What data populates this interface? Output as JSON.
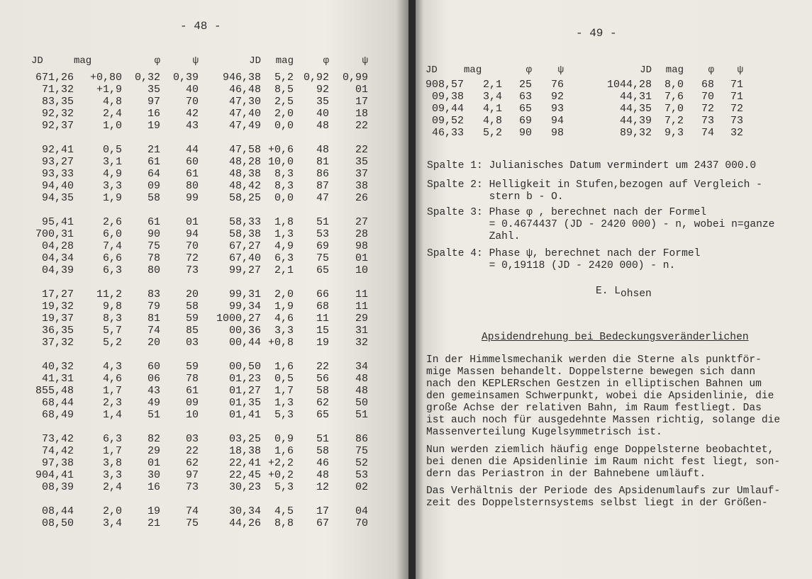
{
  "left_page": {
    "page_number": "- 48 -",
    "headers": [
      "JD",
      "mag",
      "φ",
      "ψ",
      "JD",
      "mag",
      "φ",
      "ψ"
    ],
    "rows": [
      [
        "671,26",
        "+0,80",
        "0,32",
        "0,39",
        "946,38",
        "5,2",
        "0,92",
        "0,99"
      ],
      [
        "71,32",
        "+1,9",
        "35",
        "40",
        "46,48",
        "8,5",
        "92",
        "01"
      ],
      [
        "83,35",
        "4,8",
        "97",
        "70",
        "47,30",
        "2,5",
        "35",
        "17"
      ],
      [
        "92,32",
        "2,4",
        "16",
        "42",
        "47,40",
        "2,0",
        "40",
        "18"
      ],
      [
        "92,37",
        "1,0",
        "19",
        "43",
        "47,49",
        "0,0",
        "48",
        "22"
      ],
      [],
      [
        "92,41",
        "0,5",
        "21",
        "44",
        "47,58",
        "+0,6",
        "48",
        "22"
      ],
      [
        "93,27",
        "3,1",
        "61",
        "60",
        "48,28",
        "10,0",
        "81",
        "35"
      ],
      [
        "93,33",
        "4,9",
        "64",
        "61",
        "48,38",
        "8,3",
        "86",
        "37"
      ],
      [
        "94,40",
        "3,3",
        "09",
        "80",
        "48,42",
        "8,3",
        "87",
        "38"
      ],
      [
        "94,35",
        "1,9",
        "58",
        "99",
        "58,25",
        "0,0",
        "47",
        "26"
      ],
      [],
      [
        "95,41",
        "2,6",
        "61",
        "01",
        "58,33",
        "1,8",
        "51",
        "27"
      ],
      [
        "700,31",
        "6,0",
        "90",
        "94",
        "58,38",
        "1,3",
        "53",
        "28"
      ],
      [
        "04,28",
        "7,4",
        "75",
        "70",
        "67,27",
        "4,9",
        "69",
        "98"
      ],
      [
        "04,34",
        "6,6",
        "78",
        "72",
        "67,40",
        "6,3",
        "75",
        "01"
      ],
      [
        "04,39",
        "6,3",
        "80",
        "73",
        "99,27",
        "2,1",
        "65",
        "10"
      ],
      [],
      [
        "17,27",
        "11,2",
        "83",
        "20",
        "99,31",
        "2,0",
        "66",
        "11"
      ],
      [
        "19,32",
        "9,8",
        "79",
        "58",
        "99,34",
        "1,9",
        "68",
        "11"
      ],
      [
        "19,37",
        "8,3",
        "81",
        "59",
        "1000,27",
        "4,6",
        "11",
        "29"
      ],
      [
        "36,35",
        "5,7",
        "74",
        "85",
        "00,36",
        "3,3",
        "15",
        "31"
      ],
      [
        "37,32",
        "5,2",
        "20",
        "03",
        "00,44",
        "+0,8",
        "19",
        "32"
      ],
      [],
      [
        "40,32",
        "4,3",
        "60",
        "59",
        "00,50",
        "1,6",
        "22",
        "34"
      ],
      [
        "41,31",
        "4,6",
        "06",
        "78",
        "01,23",
        "0,5",
        "56",
        "48"
      ],
      [
        "855,48",
        "1,7",
        "43",
        "61",
        "01,27",
        "1,7",
        "58",
        "48"
      ],
      [
        "68,44",
        "2,3",
        "49",
        "09",
        "01,35",
        "1,3",
        "62",
        "50"
      ],
      [
        "68,49",
        "1,4",
        "51",
        "10",
        "01,41",
        "5,3",
        "65",
        "51"
      ],
      [],
      [
        "73,42",
        "6,3",
        "82",
        "03",
        "03,25",
        "0,9",
        "51",
        "86"
      ],
      [
        "74,42",
        "1,7",
        "29",
        "22",
        "18,38",
        "1,6",
        "58",
        "75"
      ],
      [
        "97,38",
        "3,8",
        "01",
        "62",
        "22,41",
        "+2,2",
        "46",
        "52"
      ],
      [
        "904,41",
        "3,3",
        "30",
        "97",
        "22,45",
        "+0,2",
        "48",
        "53"
      ],
      [
        "08,39",
        "2,4",
        "16",
        "73",
        "30,23",
        "5,3",
        "12",
        "02"
      ],
      [],
      [
        "08,44",
        "2,0",
        "19",
        "74",
        "30,34",
        "4,5",
        "17",
        "04"
      ],
      [
        "08,50",
        "3,4",
        "21",
        "75",
        "44,26",
        "8,8",
        "67",
        "70"
      ]
    ]
  },
  "right_page": {
    "page_number": "- 49 -",
    "headers": [
      "JD",
      "mag",
      "φ",
      "ψ",
      "JD",
      "mag",
      "φ",
      "ψ"
    ],
    "rows": [
      [
        "908,57",
        "2,1",
        "25",
        "76",
        "1044,28",
        "8,0",
        "68",
        "71"
      ],
      [
        "09,38",
        "3,4",
        "63",
        "92",
        "44,31",
        "7,6",
        "70",
        "71"
      ],
      [
        "09,44",
        "4,1",
        "65",
        "93",
        "44,35",
        "7,0",
        "72",
        "72"
      ],
      [
        "09,52",
        "4,8",
        "69",
        "94",
        "44,39",
        "7,2",
        "73",
        "73"
      ],
      [
        "46,33",
        "5,2",
        "90",
        "98",
        "89,32",
        "9,3",
        "74",
        "32"
      ]
    ],
    "legend": [
      "Spalte 1: Julianisches Datum vermindert um 2437 000.0",
      "Spalte 2: Helligkeit in Stufen,bezogen auf Vergleich -\n          stern b - O.",
      "Spalte 3: Phase φ , berechnet nach der Formel\n          = 0.4674437 (JD - 2420 000) - n, wobei n=ganze\n          Zahl.",
      "Spalte 4: Phase ψ, berechnet nach der Formel\n          = 0,19118 (JD - 2420 000) - n."
    ],
    "signature": {
      "initial": "E. L",
      "sub": "ohsen"
    },
    "heading": "Apsidendrehung bei Bedeckungsveränderlichen",
    "paragraphs": [
      "In der Himmelsmechanik werden die Sterne als punktför-\nmige Massen behandelt. Doppelsterne bewegen sich dann\nnach den KEPLERschen Gestzen in elliptischen Bahnen um\nden gemeinsamen Schwerpunkt, wobei die Apsidenlinie, die\ngroße Achse der relativen Bahn, im Raum festliegt. Das\nist auch noch für ausgedehnte Massen richtig, solange die\nMassenverteilung Kugelsymmetrisch ist.",
      "Nun werden ziemlich häufig enge Doppelsterne beobachtet,\nbei denen die Apsidenlinie im Raum nicht fest liegt, son-\ndern das Periastron in der Bahnebene umläuft.",
      "Das Verhältnis der Periode des Apsidenumlaufs zur Umlauf-\nzeit des Doppelsternsystems selbst liegt in der Größen-"
    ]
  }
}
